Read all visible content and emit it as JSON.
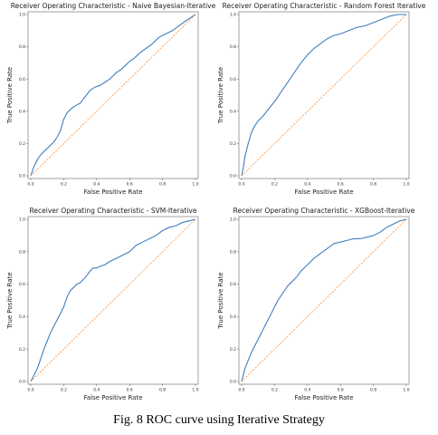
{
  "caption": "Fig. 8 ROC curve using Iterative Strategy",
  "chart_data": [
    {
      "type": "line",
      "title": "Receiver Operating Characteristic - Naive Bayesian-Iterative",
      "xlabel": "False Positive Rate",
      "ylabel": "True Positive Rate",
      "xlim": [
        0,
        1
      ],
      "ylim": [
        0,
        1
      ],
      "xticks": [
        "0.0",
        "0.2",
        "0.4",
        "0.6",
        "0.8",
        "1.0"
      ],
      "yticks": [
        "0.0",
        "0.2",
        "0.4",
        "0.6",
        "0.8",
        "1.0"
      ],
      "series": [
        {
          "x": [
            0,
            0.01,
            0.02,
            0.04,
            0.06,
            0.08,
            0.1,
            0.12,
            0.14,
            0.16,
            0.18,
            0.2,
            0.22,
            0.25,
            0.28,
            0.3,
            0.33,
            0.36,
            0.39,
            0.42,
            0.45,
            0.48,
            0.5,
            0.52,
            0.55,
            0.58,
            0.6,
            0.63,
            0.66,
            0.7,
            0.74,
            0.78,
            0.82,
            0.86,
            0.9,
            0.94,
            0.97,
            1.0
          ],
          "y": [
            0,
            0.03,
            0.06,
            0.1,
            0.13,
            0.15,
            0.17,
            0.19,
            0.21,
            0.24,
            0.28,
            0.35,
            0.39,
            0.42,
            0.44,
            0.45,
            0.49,
            0.53,
            0.55,
            0.56,
            0.58,
            0.6,
            0.62,
            0.64,
            0.66,
            0.69,
            0.71,
            0.73,
            0.76,
            0.79,
            0.82,
            0.86,
            0.88,
            0.9,
            0.93,
            0.96,
            0.98,
            1.0
          ]
        },
        {
          "x": [
            0,
            1
          ],
          "y": [
            0,
            1
          ]
        }
      ]
    },
    {
      "type": "line",
      "title": "Receiver Operating Characteristic - Random Forest Iterative",
      "xlabel": "False Positive Rate",
      "ylabel": "True Positive Rate",
      "xlim": [
        0,
        1
      ],
      "ylim": [
        0,
        1
      ],
      "xticks": [
        "0.0",
        "0.2",
        "0.4",
        "0.6",
        "0.8",
        "1.0"
      ],
      "yticks": [
        "0.0",
        "0.2",
        "0.4",
        "0.6",
        "0.8",
        "1.0"
      ],
      "series": [
        {
          "x": [
            0,
            0.01,
            0.02,
            0.04,
            0.06,
            0.08,
            0.1,
            0.13,
            0.16,
            0.2,
            0.24,
            0.28,
            0.32,
            0.36,
            0.4,
            0.44,
            0.48,
            0.52,
            0.56,
            0.6,
            0.65,
            0.7,
            0.75,
            0.8,
            0.85,
            0.9,
            0.95,
            1.0
          ],
          "y": [
            0,
            0.05,
            0.12,
            0.2,
            0.27,
            0.31,
            0.34,
            0.37,
            0.41,
            0.46,
            0.52,
            0.58,
            0.64,
            0.7,
            0.75,
            0.79,
            0.82,
            0.85,
            0.87,
            0.88,
            0.9,
            0.92,
            0.93,
            0.95,
            0.97,
            0.99,
            1.0,
            1.0
          ]
        },
        {
          "x": [
            0,
            1
          ],
          "y": [
            0,
            1
          ]
        }
      ]
    },
    {
      "type": "line",
      "title": "Receiver Operating Characteristic - SVM-Iterative",
      "xlabel": "False Positive Rate",
      "ylabel": "True Positive Rate",
      "xlim": [
        0,
        1
      ],
      "ylim": [
        0,
        1
      ],
      "xticks": [
        "0.0",
        "0.2",
        "0.4",
        "0.6",
        "0.8",
        "1.0"
      ],
      "yticks": [
        "0.0",
        "0.2",
        "0.4",
        "0.6",
        "0.8",
        "1.0"
      ],
      "series": [
        {
          "x": [
            0,
            0.02,
            0.04,
            0.06,
            0.08,
            0.1,
            0.12,
            0.14,
            0.16,
            0.18,
            0.2,
            0.22,
            0.24,
            0.26,
            0.28,
            0.3,
            0.33,
            0.36,
            0.38,
            0.4,
            0.42,
            0.45,
            0.48,
            0.52,
            0.56,
            0.6,
            0.64,
            0.68,
            0.72,
            0.76,
            0.8,
            0.84,
            0.88,
            0.92,
            0.96,
            1.0
          ],
          "y": [
            0,
            0.04,
            0.08,
            0.14,
            0.2,
            0.25,
            0.3,
            0.34,
            0.38,
            0.42,
            0.46,
            0.52,
            0.56,
            0.58,
            0.6,
            0.61,
            0.64,
            0.68,
            0.7,
            0.7,
            0.71,
            0.72,
            0.74,
            0.76,
            0.78,
            0.8,
            0.84,
            0.86,
            0.88,
            0.9,
            0.93,
            0.95,
            0.96,
            0.98,
            0.99,
            1.0
          ]
        },
        {
          "x": [
            0,
            1
          ],
          "y": [
            0,
            1
          ]
        }
      ]
    },
    {
      "type": "line",
      "title": "Receiver Operating Characteristic - XGBoost-Iterative",
      "xlabel": "False Positive Rate",
      "ylabel": "True Positive Rate",
      "xlim": [
        0,
        1
      ],
      "ylim": [
        0,
        1
      ],
      "xticks": [
        "0.0",
        "0.2",
        "0.4",
        "0.6",
        "0.8",
        "1.0"
      ],
      "yticks": [
        "0.0",
        "0.2",
        "0.4",
        "0.6",
        "0.8",
        "1.0"
      ],
      "series": [
        {
          "x": [
            0,
            0.01,
            0.02,
            0.04,
            0.06,
            0.08,
            0.1,
            0.12,
            0.14,
            0.16,
            0.18,
            0.2,
            0.22,
            0.24,
            0.26,
            0.28,
            0.3,
            0.33,
            0.36,
            0.4,
            0.44,
            0.48,
            0.52,
            0.56,
            0.6,
            0.64,
            0.68,
            0.72,
            0.76,
            0.8,
            0.84,
            0.88,
            0.92,
            0.96,
            1.0
          ],
          "y": [
            0,
            0.04,
            0.08,
            0.13,
            0.18,
            0.22,
            0.26,
            0.3,
            0.34,
            0.38,
            0.42,
            0.46,
            0.5,
            0.53,
            0.56,
            0.59,
            0.61,
            0.64,
            0.68,
            0.72,
            0.76,
            0.79,
            0.82,
            0.85,
            0.86,
            0.87,
            0.88,
            0.88,
            0.89,
            0.9,
            0.92,
            0.95,
            0.97,
            0.99,
            1.0
          ]
        },
        {
          "x": [
            0,
            1
          ],
          "y": [
            0,
            1
          ]
        }
      ]
    }
  ]
}
